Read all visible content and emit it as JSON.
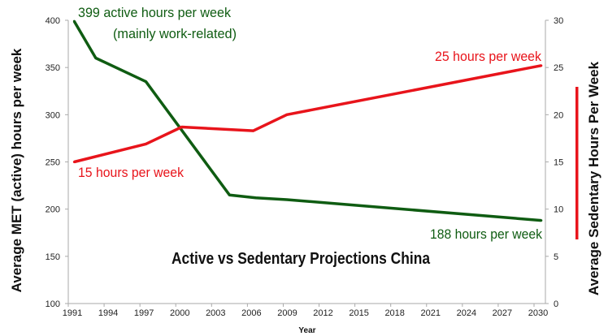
{
  "chart_data": {
    "type": "line",
    "title": "Active vs Sedentary Projections China",
    "xlabel": "Year",
    "ylabel_left": "Average MET (active) hours per week",
    "ylabel_right": "Average Sedentary Hours Per Week",
    "xlim": [
      1991,
      2030
    ],
    "ylim_left": [
      100,
      400
    ],
    "ylim_right": [
      0,
      30
    ],
    "x_ticks": [
      "1991",
      "1994",
      "1997",
      "2000",
      "2003",
      "2006",
      "2009",
      "2012",
      "2015",
      "2018",
      "2021",
      "2024",
      "2027",
      "2030"
    ],
    "y_ticks_left": [
      "100",
      "150",
      "200",
      "250",
      "300",
      "350",
      "400"
    ],
    "y_ticks_right": [
      "0",
      "5",
      "10",
      "15",
      "20",
      "25",
      "30"
    ],
    "grid": false,
    "series": [
      {
        "axis": "left",
        "color": "#0f5c12",
        "x": [
          1991.5,
          1993.3,
          1997.5,
          2004.5,
          2006.7,
          2009.3,
          2030.6
        ],
        "y": [
          399,
          360,
          335,
          215,
          212,
          210,
          188
        ]
      },
      {
        "axis": "right",
        "color": "#e8141b",
        "x": [
          1991.5,
          1997.5,
          2000.5,
          2006.5,
          2009.3,
          2030.6
        ],
        "y": [
          15.0,
          16.9,
          18.7,
          18.3,
          20.0,
          25.2
        ]
      }
    ],
    "annotations": {
      "active_start": "399 active hours per week",
      "active_start_note": "(mainly work-related)",
      "active_end": "188 hours per week",
      "sedentary_start": "15 hours per week",
      "sedentary_end": "25 hours per week"
    }
  }
}
